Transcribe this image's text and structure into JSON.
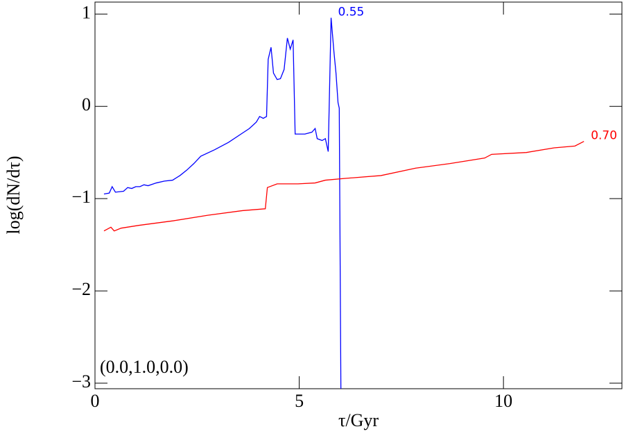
{
  "chart_data": {
    "type": "line",
    "xlabel": "τ/Gyr",
    "ylabel": "log(dN/dτ)",
    "annotation": "(0.0,1.0,0.0)",
    "xlim": [
      0,
      12.9
    ],
    "ylim": [
      -3.06,
      1.13
    ],
    "xticks": [
      0,
      5,
      10
    ],
    "yticks": [
      {
        "value": -3,
        "label": "−3"
      },
      {
        "value": -2,
        "label": "−2"
      },
      {
        "value": -1,
        "label": "−1"
      },
      0,
      1
    ],
    "series": [
      {
        "name": "0.55",
        "color": "#0000ff",
        "x": [
          0.22,
          0.35,
          0.42,
          0.5,
          0.7,
          0.8,
          0.9,
          1.0,
          1.1,
          1.2,
          1.3,
          1.5,
          1.7,
          1.9,
          2.08,
          2.25,
          2.42,
          2.59,
          2.93,
          3.27,
          3.61,
          3.78,
          3.95,
          4.03,
          4.12,
          4.2,
          4.24,
          4.31,
          4.37,
          4.46,
          4.54,
          4.63,
          4.71,
          4.78,
          4.85,
          4.9,
          5.14,
          5.31,
          5.39,
          5.44,
          5.56,
          5.64,
          5.71,
          5.78,
          5.85,
          5.9,
          5.95,
          5.98,
          6.02
        ],
        "values": [
          -0.95,
          -0.94,
          -0.87,
          -0.93,
          -0.92,
          -0.88,
          -0.89,
          -0.87,
          -0.87,
          -0.85,
          -0.86,
          -0.83,
          -0.81,
          -0.8,
          -0.75,
          -0.69,
          -0.62,
          -0.54,
          -0.47,
          -0.39,
          -0.29,
          -0.24,
          -0.17,
          -0.11,
          -0.13,
          -0.11,
          0.51,
          0.64,
          0.36,
          0.29,
          0.3,
          0.4,
          0.74,
          0.62,
          0.72,
          -0.3,
          -0.3,
          -0.28,
          -0.24,
          -0.35,
          -0.37,
          -0.35,
          -0.49,
          0.96,
          0.59,
          0.36,
          0.04,
          -0.02,
          -3.06
        ]
      },
      {
        "name": "0.70",
        "color": "#ff0000",
        "x": [
          0.22,
          0.39,
          0.47,
          0.64,
          1.07,
          1.92,
          2.76,
          3.61,
          4.17,
          4.22,
          4.46,
          4.97,
          5.39,
          5.64,
          6.15,
          7.0,
          7.85,
          8.69,
          9.54,
          9.71,
          10.56,
          11.24,
          11.75,
          11.97
        ],
        "values": [
          -1.35,
          -1.31,
          -1.35,
          -1.32,
          -1.29,
          -1.24,
          -1.18,
          -1.13,
          -1.11,
          -0.88,
          -0.84,
          -0.84,
          -0.83,
          -0.8,
          -0.78,
          -0.75,
          -0.67,
          -0.62,
          -0.56,
          -0.52,
          -0.5,
          -0.45,
          -0.43,
          -0.38
        ]
      }
    ]
  }
}
